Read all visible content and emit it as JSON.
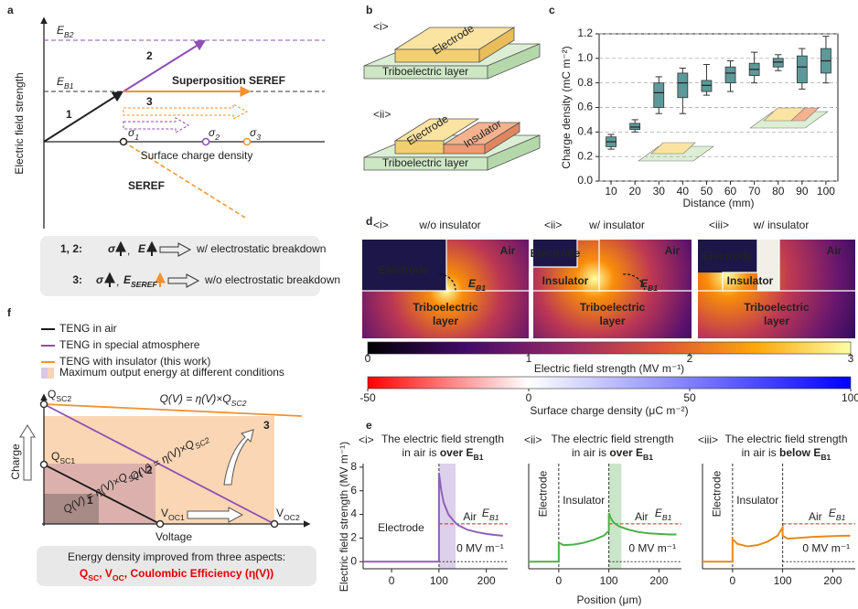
{
  "panels": {
    "a": {
      "letter": "a",
      "ylabel": "Electric field strength",
      "EB2": {
        "main": "E",
        "sub": "B2"
      },
      "EB1": {
        "main": "E",
        "sub": "B1"
      },
      "n1": "1",
      "n2": "2",
      "n3": "3",
      "superposition": "Superposition SEREF",
      "seref": "SEREF",
      "s1": {
        "main": "σ",
        "sub": "1"
      },
      "s2": {
        "main": "σ",
        "sub": "2"
      },
      "s3": {
        "main": "σ",
        "sub": "3"
      },
      "xlabel": "Surface charge density",
      "legend": [
        {
          "label": "1, 2:",
          "sigma": "σ",
          "sep": ",",
          "field": "E",
          "result": "w/ electrostatic breakdown"
        },
        {
          "label": "3:",
          "sigma": "σ",
          "sep": ",",
          "field": {
            "main": "E",
            "sub": "SEREF"
          },
          "result": "w/o electrostatic breakdown"
        }
      ]
    },
    "b": {
      "letter": "b",
      "i": "<i>",
      "electrode1": "Electrode",
      "layer1": "Triboelectric layer",
      "ii": "<ii>",
      "electrode2": "Electrode",
      "insulator": "Insulator",
      "layer2": "Triboelectric layer"
    },
    "c": {
      "letter": "c"
    },
    "d": {
      "letter": "d",
      "images": [
        {
          "index": "<i>",
          "title": "w/o insulator",
          "electrode": "Electrode",
          "air": "Air",
          "eb1": {
            "main": "E",
            "sub": "B1"
          },
          "layer1": "Triboelectric",
          "layer2": "layer"
        },
        {
          "index": "<ii>",
          "title": "w/ insulator",
          "electrode": "Electrode",
          "air": "Air",
          "insulator": "Insulator",
          "eb1": {
            "main": "E",
            "sub": "B1"
          },
          "layer1": "Triboelectric",
          "layer2": "layer"
        },
        {
          "index": "<iii>",
          "title": "w/ insulator",
          "electrode": "Electrode",
          "air": "Air",
          "insulator": "Insulator",
          "layer1": "Triboelectric",
          "layer2": "layer"
        }
      ],
      "colorbar1": {
        "lim": [
          0,
          3
        ],
        "ticks": [
          0,
          1,
          2,
          3
        ],
        "label": "Electric field strength (MV m⁻¹)"
      },
      "colorbar2": {
        "lim": [
          -50,
          100
        ],
        "ticks": [
          -50,
          0,
          50,
          100
        ],
        "label": "Surface charge density (μC m⁻²)"
      }
    },
    "e": {
      "letter": "e"
    },
    "f": {
      "letter": "f",
      "legend": [
        {
          "name": "TENG in air",
          "color": "#1a1a1a"
        },
        {
          "name": "TENG in special atmosphere",
          "color": "#8e4fb5"
        },
        {
          "name": "TENG with insulator (this work)",
          "color": "#f0922e"
        }
      ],
      "area_legend": "Maximum output energy at different conditions",
      "ylabel": "Charge",
      "xlabel": "Voltage",
      "qsc2": {
        "main": "Q",
        "sub": "SC2"
      },
      "qsc1": {
        "main": "Q",
        "sub": "SC1"
      },
      "voc1": {
        "main": "V",
        "sub": "OC1"
      },
      "voc2": {
        "main": "V",
        "sub": "OC2"
      },
      "eq3": {
        "main": "Q(V) = η(V)×Q",
        "sub": "SC2"
      },
      "eq2": {
        "main": "Q(V) = η(V)×Q",
        "sub": "SC2"
      },
      "eq1": {
        "main": "Q(V) = η(V)×Q",
        "sub": "SC1"
      },
      "n1": "1",
      "n2": "2",
      "n3": "3",
      "summary": "Energy density improved from three aspects:",
      "aspects": {
        "q": {
          "main": "Q",
          "sub": "SC"
        },
        "sep": ", ",
        "v": {
          "main": "V",
          "sub": "OC"
        },
        "rest": ", Coulombic Efficiency (η(V))"
      }
    }
  },
  "chart_data": [
    {
      "type": "box",
      "xlabel": "Distance (mm)",
      "ylabel": "Charge density (mC m⁻²)",
      "color": "#5b9a9a",
      "grid": true,
      "categories": [
        "10",
        "20",
        "30",
        "40",
        "50",
        "60",
        "70",
        "80",
        "90",
        "100"
      ],
      "whisker_low": [
        0.26,
        0.4,
        0.55,
        0.55,
        0.7,
        0.73,
        0.8,
        0.9,
        0.75,
        0.8
      ],
      "q1": [
        0.28,
        0.42,
        0.6,
        0.68,
        0.73,
        0.8,
        0.86,
        0.93,
        0.8,
        0.88
      ],
      "median": [
        0.32,
        0.44,
        0.72,
        0.8,
        0.78,
        0.88,
        0.91,
        0.97,
        0.93,
        0.98
      ],
      "q3": [
        0.36,
        0.47,
        0.8,
        0.88,
        0.82,
        0.93,
        0.96,
        1.0,
        1.02,
        1.08
      ],
      "whisker_high": [
        0.38,
        0.5,
        0.85,
        0.92,
        0.95,
        0.98,
        1.05,
        1.03,
        1.08,
        1.18
      ],
      "ylim": [
        0,
        1.2
      ],
      "yticks": [
        {
          "value": 0,
          "label": "0.0"
        },
        {
          "value": 0.2,
          "label": "0.2"
        },
        {
          "value": 0.4,
          "label": "0.4"
        },
        {
          "value": 0.6,
          "label": "0.6"
        },
        {
          "value": 0.8,
          "label": "0.8"
        },
        {
          "value": 1,
          "label": "1.0"
        },
        {
          "value": 1.2,
          "label": "1.2"
        }
      ]
    },
    {
      "type": "line",
      "index": "<i>",
      "title": "The electric field strength",
      "title2": "in air is ",
      "emphasis": {
        "main": "over E",
        "sub": "B1"
      },
      "color": "#8e62b8",
      "ylabel": "Electric field strength (MV m⁻¹)",
      "xlabel": "Position (μm)",
      "x": [
        -60,
        -20,
        20,
        60,
        100,
        100,
        105,
        110,
        120,
        130,
        140,
        160,
        180,
        200,
        220,
        235
      ],
      "values": [
        0,
        0,
        0,
        0,
        0,
        7.5,
        6.0,
        5.0,
        4.0,
        3.5,
        3.1,
        2.7,
        2.5,
        2.35,
        2.25,
        2.2
      ],
      "xlim": [
        -60,
        245
      ],
      "ylim": [
        -0.6,
        8.3
      ],
      "xticks": [
        0,
        100,
        200
      ],
      "yticks": [
        0,
        2,
        4,
        6,
        8
      ],
      "boundaries": [
        100
      ],
      "baseline": 0,
      "threshold": 3.2,
      "highlight": [
        100,
        135
      ],
      "left": "Electrode",
      "air": "Air",
      "threshold_label": {
        "main": "E",
        "sub": "B1"
      },
      "zero_label": "0 MV m⁻¹"
    },
    {
      "type": "line",
      "index": "<ii>",
      "title": "The electric field strength",
      "title2": "in air is ",
      "emphasis": {
        "main": "over E",
        "sub": "B1"
      },
      "color": "#4daf4a",
      "x": [
        -60,
        -30,
        0,
        0,
        10,
        30,
        50,
        70,
        90,
        100,
        100,
        105,
        110,
        120,
        140,
        160,
        180,
        200,
        220,
        235
      ],
      "values": [
        0,
        0,
        0,
        1.6,
        1.4,
        1.45,
        1.6,
        1.85,
        2.2,
        2.6,
        4.1,
        3.6,
        3.3,
        3.0,
        2.7,
        2.5,
        2.4,
        2.35,
        2.3,
        2.3
      ],
      "xlim": [
        -60,
        245
      ],
      "ylim": [
        -0.6,
        8.3
      ],
      "xticks": [
        0,
        100,
        200
      ],
      "boundaries": [
        0,
        100
      ],
      "baseline": 0,
      "threshold": 3.2,
      "highlight": [
        100,
        125
      ],
      "left": "Electrode",
      "middle": "Insulator",
      "air": "Air",
      "threshold_label": {
        "main": "E",
        "sub": "B1"
      },
      "zero_label": "0 MV m⁻¹"
    },
    {
      "type": "line",
      "index": "<iii>",
      "title": "The electric field strength",
      "title2": "in air is ",
      "emphasis": {
        "main": "below E",
        "sub": "B1"
      },
      "color": "#e88a1a",
      "x": [
        -60,
        -30,
        0,
        0,
        10,
        30,
        50,
        70,
        90,
        100,
        100,
        110,
        130,
        160,
        190,
        220,
        235
      ],
      "values": [
        0,
        0,
        0,
        1.9,
        1.5,
        1.3,
        1.4,
        1.7,
        2.2,
        2.9,
        2.2,
        1.95,
        2.0,
        2.1,
        2.15,
        2.2,
        2.2
      ],
      "xlim": [
        -60,
        245
      ],
      "ylim": [
        -0.6,
        8.3
      ],
      "xticks": [
        0,
        100,
        200
      ],
      "boundaries": [
        0,
        100
      ],
      "baseline": 0,
      "threshold": 3.2,
      "left": "Electrode",
      "middle": "Insulator",
      "air": "Air",
      "threshold_label": {
        "main": "E",
        "sub": "B1"
      },
      "zero_label": "0 MV m⁻¹"
    }
  ]
}
